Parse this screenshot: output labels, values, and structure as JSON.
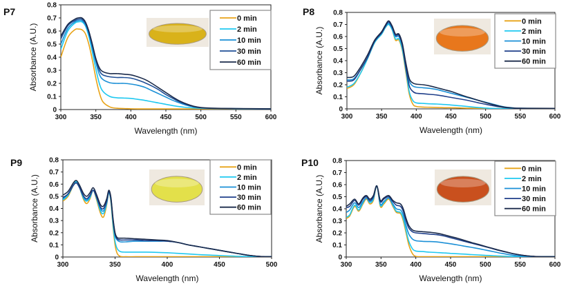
{
  "chart_data": [
    {
      "type": "line",
      "panel_label": "P7",
      "xlabel": "Wavelength (nm)",
      "ylabel": "Absorbance (A.U.)",
      "xlim": [
        300,
        600
      ],
      "ylim": [
        0,
        0.8
      ],
      "xticks": [
        300,
        350,
        400,
        450,
        500,
        550,
        600
      ],
      "yticks": [
        0,
        0.1,
        0.2,
        0.3,
        0.4,
        0.5,
        0.6,
        0.7,
        0.8
      ],
      "grid": false,
      "legend_position": "top-right",
      "inset_photo": {
        "description": "yellow solution in petri dish",
        "color": "#d9b21a"
      },
      "x": [
        300,
        310,
        320,
        325,
        330,
        335,
        340,
        345,
        350,
        355,
        360,
        370,
        380,
        390,
        400,
        410,
        420,
        430,
        440,
        450,
        460,
        470,
        480,
        490,
        500,
        520,
        550,
        600
      ],
      "series": [
        {
          "name": "0 min",
          "color": "#e8a317",
          "values": [
            0.4,
            0.55,
            0.61,
            0.615,
            0.61,
            0.58,
            0.5,
            0.38,
            0.24,
            0.13,
            0.06,
            0.02,
            0.01,
            0.008,
            0.006,
            0.005,
            0.005,
            0.005,
            0.005,
            0.005,
            0.005,
            0.005,
            0.005,
            0.005,
            0.005,
            0.005,
            0.005,
            0.005
          ]
        },
        {
          "name": "2 min",
          "color": "#1ec8f0",
          "values": [
            0.46,
            0.6,
            0.66,
            0.67,
            0.67,
            0.64,
            0.56,
            0.44,
            0.31,
            0.2,
            0.14,
            0.1,
            0.09,
            0.088,
            0.085,
            0.078,
            0.07,
            0.06,
            0.05,
            0.04,
            0.03,
            0.022,
            0.016,
            0.012,
            0.01,
            0.008,
            0.006,
            0.005
          ]
        },
        {
          "name": "10 min",
          "color": "#1a8fd6",
          "values": [
            0.5,
            0.62,
            0.67,
            0.68,
            0.68,
            0.65,
            0.58,
            0.47,
            0.36,
            0.27,
            0.23,
            0.205,
            0.2,
            0.2,
            0.195,
            0.185,
            0.17,
            0.145,
            0.12,
            0.095,
            0.07,
            0.05,
            0.032,
            0.02,
            0.013,
            0.009,
            0.007,
            0.005
          ]
        },
        {
          "name": "30 min",
          "color": "#1f4e96",
          "values": [
            0.54,
            0.64,
            0.68,
            0.69,
            0.69,
            0.66,
            0.59,
            0.49,
            0.38,
            0.3,
            0.265,
            0.25,
            0.245,
            0.245,
            0.24,
            0.225,
            0.205,
            0.18,
            0.15,
            0.115,
            0.085,
            0.058,
            0.038,
            0.022,
            0.014,
            0.009,
            0.007,
            0.005
          ]
        },
        {
          "name": "60 min",
          "color": "#1a2a4a",
          "values": [
            0.56,
            0.65,
            0.69,
            0.7,
            0.7,
            0.67,
            0.6,
            0.5,
            0.39,
            0.32,
            0.29,
            0.275,
            0.275,
            0.27,
            0.265,
            0.25,
            0.23,
            0.2,
            0.165,
            0.13,
            0.095,
            0.065,
            0.042,
            0.025,
            0.016,
            0.01,
            0.008,
            0.006
          ]
        }
      ]
    },
    {
      "type": "line",
      "panel_label": "P8",
      "xlabel": "Wavelength (nm)",
      "ylabel": "Absorbance (A.U.)",
      "xlim": [
        300,
        600
      ],
      "ylim": [
        0,
        0.8
      ],
      "xticks": [
        300,
        350,
        400,
        450,
        500,
        550,
        600
      ],
      "yticks": [
        0,
        0.1,
        0.2,
        0.3,
        0.4,
        0.5,
        0.6,
        0.7,
        0.8
      ],
      "grid": false,
      "legend_position": "top-right",
      "inset_photo": {
        "description": "orange solution in petri dish",
        "color": "#e8771c"
      },
      "x": [
        300,
        310,
        320,
        330,
        340,
        350,
        355,
        360,
        365,
        370,
        375,
        380,
        385,
        390,
        395,
        400,
        410,
        420,
        430,
        440,
        450,
        460,
        470,
        480,
        490,
        500,
        510,
        520,
        530,
        540,
        550,
        600
      ],
      "series": [
        {
          "name": "0 min",
          "color": "#e8a317",
          "values": [
            0.17,
            0.2,
            0.3,
            0.42,
            0.55,
            0.62,
            0.67,
            0.7,
            0.66,
            0.57,
            0.57,
            0.48,
            0.3,
            0.12,
            0.04,
            0.02,
            0.015,
            0.013,
            0.012,
            0.01,
            0.01,
            0.008,
            0.006,
            0.005,
            0.004,
            0.003,
            0.003,
            0.003,
            0.003,
            0.003,
            0.003,
            0.003
          ]
        },
        {
          "name": "2 min",
          "color": "#1ec8f0",
          "values": [
            0.18,
            0.21,
            0.3,
            0.42,
            0.55,
            0.62,
            0.67,
            0.7,
            0.66,
            0.58,
            0.58,
            0.49,
            0.32,
            0.14,
            0.07,
            0.05,
            0.045,
            0.042,
            0.04,
            0.036,
            0.032,
            0.027,
            0.022,
            0.016,
            0.011,
            0.007,
            0.004,
            0.003,
            0.003,
            0.003,
            0.003,
            0.003
          ]
        },
        {
          "name": "10 min",
          "color": "#1a8fd6",
          "values": [
            0.24,
            0.25,
            0.33,
            0.43,
            0.56,
            0.63,
            0.68,
            0.71,
            0.67,
            0.6,
            0.6,
            0.52,
            0.36,
            0.23,
            0.19,
            0.18,
            0.175,
            0.17,
            0.16,
            0.145,
            0.13,
            0.115,
            0.1,
            0.085,
            0.07,
            0.055,
            0.04,
            0.025,
            0.014,
            0.008,
            0.005,
            0.003
          ]
        },
        {
          "name": "30 min",
          "color": "#1f3f8a",
          "values": [
            0.23,
            0.24,
            0.33,
            0.43,
            0.56,
            0.63,
            0.68,
            0.72,
            0.68,
            0.61,
            0.61,
            0.52,
            0.34,
            0.19,
            0.145,
            0.13,
            0.125,
            0.12,
            0.115,
            0.105,
            0.095,
            0.085,
            0.075,
            0.063,
            0.05,
            0.038,
            0.027,
            0.017,
            0.01,
            0.006,
            0.004,
            0.003
          ]
        },
        {
          "name": "60 min",
          "color": "#1a2a4a",
          "values": [
            0.26,
            0.27,
            0.35,
            0.45,
            0.57,
            0.64,
            0.69,
            0.73,
            0.69,
            0.62,
            0.62,
            0.54,
            0.38,
            0.25,
            0.215,
            0.205,
            0.2,
            0.19,
            0.175,
            0.16,
            0.145,
            0.125,
            0.105,
            0.088,
            0.07,
            0.052,
            0.036,
            0.022,
            0.012,
            0.007,
            0.005,
            0.004
          ]
        }
      ]
    },
    {
      "type": "line",
      "panel_label": "P9",
      "xlabel": "Wavelength (nm)",
      "ylabel": "Absorbance (A.U.)",
      "xlim": [
        300,
        500
      ],
      "ylim": [
        0,
        0.8
      ],
      "xticks": [
        300,
        350,
        400,
        450,
        500
      ],
      "yticks": [
        0,
        0.1,
        0.2,
        0.3,
        0.4,
        0.5,
        0.6,
        0.7,
        0.8
      ],
      "grid": false,
      "legend_position": "top-right",
      "inset_photo": {
        "description": "pale yellow solution in petri dish",
        "color": "#e3e04a"
      },
      "x": [
        300,
        305,
        310,
        313,
        316,
        320,
        323,
        326,
        329,
        332,
        336,
        339,
        342,
        344,
        346,
        348,
        350,
        352,
        355,
        360,
        370,
        380,
        390,
        400,
        410,
        420,
        430,
        440,
        450,
        460,
        470,
        480,
        490,
        500
      ],
      "series": [
        {
          "name": "0 min",
          "color": "#e8a317",
          "values": [
            0.46,
            0.5,
            0.59,
            0.62,
            0.57,
            0.47,
            0.44,
            0.48,
            0.55,
            0.48,
            0.36,
            0.33,
            0.43,
            0.53,
            0.45,
            0.25,
            0.1,
            0.03,
            0.005,
            0.002,
            0.002,
            0.002,
            0.002,
            0.002,
            0.002,
            0.002,
            0.002,
            0.002,
            0.002,
            0.002,
            0.002,
            0.002,
            0.002,
            0.002
          ]
        },
        {
          "name": "2 min",
          "color": "#1ec8f0",
          "values": [
            0.47,
            0.51,
            0.59,
            0.62,
            0.57,
            0.48,
            0.46,
            0.49,
            0.55,
            0.49,
            0.38,
            0.36,
            0.44,
            0.53,
            0.46,
            0.27,
            0.13,
            0.07,
            0.045,
            0.04,
            0.04,
            0.04,
            0.038,
            0.035,
            0.03,
            0.025,
            0.02,
            0.016,
            0.012,
            0.008,
            0.005,
            0.003,
            0.002,
            0.002
          ]
        },
        {
          "name": "10 min",
          "color": "#1a8fd6",
          "values": [
            0.48,
            0.52,
            0.59,
            0.61,
            0.57,
            0.49,
            0.47,
            0.5,
            0.55,
            0.5,
            0.4,
            0.38,
            0.45,
            0.53,
            0.47,
            0.3,
            0.18,
            0.14,
            0.125,
            0.125,
            0.13,
            0.13,
            0.13,
            0.13,
            0.12,
            0.1,
            0.085,
            0.07,
            0.055,
            0.04,
            0.025,
            0.012,
            0.004,
            0.002
          ]
        },
        {
          "name": "30 min",
          "color": "#1f3f8a",
          "values": [
            0.49,
            0.52,
            0.59,
            0.61,
            0.57,
            0.5,
            0.48,
            0.51,
            0.55,
            0.5,
            0.41,
            0.4,
            0.46,
            0.54,
            0.48,
            0.31,
            0.19,
            0.15,
            0.14,
            0.14,
            0.14,
            0.135,
            0.135,
            0.13,
            0.12,
            0.1,
            0.085,
            0.07,
            0.055,
            0.04,
            0.025,
            0.012,
            0.004,
            0.002
          ]
        },
        {
          "name": "60 min",
          "color": "#1a2a4a",
          "values": [
            0.51,
            0.54,
            0.61,
            0.63,
            0.59,
            0.52,
            0.5,
            0.53,
            0.57,
            0.52,
            0.43,
            0.42,
            0.48,
            0.55,
            0.49,
            0.32,
            0.2,
            0.16,
            0.155,
            0.155,
            0.15,
            0.145,
            0.14,
            0.135,
            0.12,
            0.1,
            0.085,
            0.07,
            0.055,
            0.04,
            0.025,
            0.012,
            0.004,
            0.002
          ]
        }
      ]
    },
    {
      "type": "line",
      "panel_label": "P10",
      "xlabel": "Wavelength (nm)",
      "ylabel": "Absorbance (A.U.)",
      "xlim": [
        300,
        600
      ],
      "ylim": [
        0,
        0.8
      ],
      "xticks": [
        300,
        350,
        400,
        450,
        500,
        550,
        600
      ],
      "yticks": [
        0,
        0.1,
        0.2,
        0.3,
        0.4,
        0.5,
        0.6,
        0.7,
        0.8
      ],
      "grid": false,
      "legend_position": "top-right",
      "inset_photo": {
        "description": "red-orange solution in petri dish",
        "color": "#c9501e"
      },
      "x": [
        300,
        305,
        312,
        318,
        324,
        329,
        334,
        339,
        344,
        349,
        354,
        361,
        367,
        372,
        378,
        382,
        386,
        390,
        395,
        400,
        410,
        420,
        430,
        440,
        450,
        460,
        470,
        480,
        490,
        500,
        510,
        520,
        530,
        540,
        550,
        560,
        570,
        580,
        600
      ],
      "series": [
        {
          "name": "0 min",
          "color": "#e8a317",
          "values": [
            0.32,
            0.34,
            0.42,
            0.38,
            0.44,
            0.48,
            0.44,
            0.47,
            0.59,
            0.42,
            0.44,
            0.48,
            0.42,
            0.37,
            0.36,
            0.3,
            0.2,
            0.1,
            0.03,
            0.005,
            0.003,
            0.003,
            0.003,
            0.003,
            0.003,
            0.003,
            0.003,
            0.003,
            0.003,
            0.003,
            0.003,
            0.003,
            0.003,
            0.003,
            0.003,
            0.003,
            0.003,
            0.003,
            0.003
          ]
        },
        {
          "name": "2 min",
          "color": "#1ec8f0",
          "values": [
            0.33,
            0.35,
            0.43,
            0.39,
            0.45,
            0.49,
            0.45,
            0.48,
            0.59,
            0.43,
            0.45,
            0.49,
            0.43,
            0.38,
            0.37,
            0.32,
            0.22,
            0.13,
            0.07,
            0.05,
            0.045,
            0.04,
            0.037,
            0.034,
            0.03,
            0.027,
            0.024,
            0.02,
            0.017,
            0.014,
            0.011,
            0.008,
            0.006,
            0.004,
            0.003,
            0.003,
            0.003,
            0.003,
            0.003
          ]
        },
        {
          "name": "10 min",
          "color": "#1a8fd6",
          "values": [
            0.37,
            0.39,
            0.45,
            0.41,
            0.46,
            0.49,
            0.46,
            0.49,
            0.59,
            0.44,
            0.46,
            0.49,
            0.44,
            0.4,
            0.39,
            0.35,
            0.26,
            0.19,
            0.15,
            0.135,
            0.13,
            0.128,
            0.125,
            0.118,
            0.11,
            0.1,
            0.09,
            0.08,
            0.07,
            0.058,
            0.046,
            0.034,
            0.024,
            0.015,
            0.009,
            0.005,
            0.003,
            0.003,
            0.003
          ]
        },
        {
          "name": "30 min",
          "color": "#1f3f8a",
          "values": [
            0.41,
            0.42,
            0.47,
            0.43,
            0.48,
            0.5,
            0.47,
            0.5,
            0.59,
            0.46,
            0.48,
            0.5,
            0.46,
            0.43,
            0.42,
            0.38,
            0.3,
            0.24,
            0.21,
            0.2,
            0.195,
            0.19,
            0.185,
            0.175,
            0.16,
            0.145,
            0.13,
            0.115,
            0.1,
            0.085,
            0.07,
            0.054,
            0.04,
            0.027,
            0.017,
            0.01,
            0.005,
            0.003,
            0.003
          ]
        },
        {
          "name": "60 min",
          "color": "#1a2a4a",
          "values": [
            0.42,
            0.44,
            0.48,
            0.44,
            0.49,
            0.51,
            0.48,
            0.51,
            0.59,
            0.47,
            0.49,
            0.51,
            0.47,
            0.45,
            0.44,
            0.4,
            0.32,
            0.26,
            0.225,
            0.215,
            0.21,
            0.205,
            0.198,
            0.185,
            0.17,
            0.155,
            0.138,
            0.12,
            0.105,
            0.088,
            0.072,
            0.056,
            0.042,
            0.028,
            0.018,
            0.01,
            0.005,
            0.003,
            0.003
          ]
        }
      ]
    }
  ]
}
